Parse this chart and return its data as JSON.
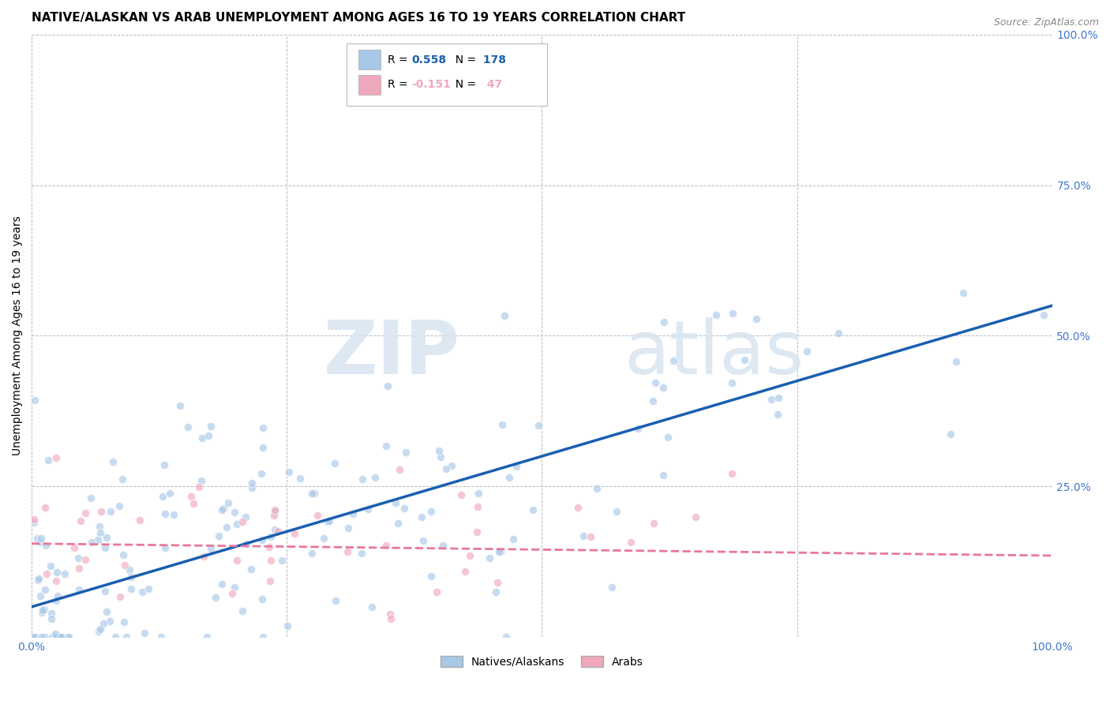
{
  "title": "NATIVE/ALASKAN VS ARAB UNEMPLOYMENT AMONG AGES 16 TO 19 YEARS CORRELATION CHART",
  "source": "Source: ZipAtlas.com",
  "xlabel": "",
  "ylabel": "Unemployment Among Ages 16 to 19 years",
  "xlim": [
    0.0,
    1.0
  ],
  "ylim": [
    0.0,
    1.0
  ],
  "xticks": [
    0.0,
    0.25,
    0.5,
    0.75,
    1.0
  ],
  "yticks": [
    0.0,
    0.25,
    0.5,
    0.75,
    1.0
  ],
  "xtick_labels": [
    "0.0%",
    "",
    "",
    "",
    "100.0%"
  ],
  "ytick_labels": [
    "",
    "25.0%",
    "50.0%",
    "75.0%",
    "100.0%"
  ],
  "native_color": "#A8C8E8",
  "arab_color": "#F0A8BC",
  "native_line_color": "#1A5FB0",
  "arab_line_color": "#E8789A",
  "native_R": 0.558,
  "native_N": 178,
  "arab_R": -0.151,
  "arab_N": 47,
  "background_color": "#FFFFFF",
  "grid_color": "#BBBBBB",
  "axis_label_color": "#4477CC",
  "watermark_color": "#D8E4F0",
  "title_fontsize": 11,
  "label_fontsize": 10,
  "tick_fontsize": 10,
  "legend_fontsize": 10,
  "source_fontsize": 9,
  "marker_size": 55,
  "marker_alpha": 0.65,
  "native_seed": 77,
  "arab_seed": 55,
  "native_line_intercept": 0.05,
  "native_line_slope": 0.5,
  "arab_line_intercept": 0.155,
  "arab_line_slope": -0.02
}
